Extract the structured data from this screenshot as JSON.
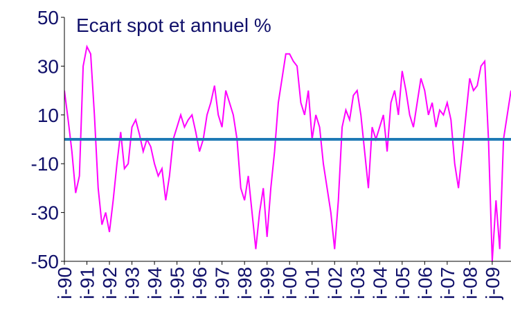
{
  "chart_data": {
    "type": "line",
    "annotation": "Ecart spot et annuel %",
    "categories": [
      "i-90",
      null,
      null,
      null,
      null,
      null,
      "i-91",
      null,
      null,
      null,
      null,
      null,
      "i-92",
      null,
      null,
      null,
      null,
      null,
      "i-93",
      null,
      null,
      null,
      null,
      null,
      "i-94",
      null,
      null,
      null,
      null,
      null,
      "i-95",
      null,
      null,
      null,
      null,
      null,
      "i-96",
      null,
      null,
      null,
      null,
      null,
      "i-97",
      null,
      null,
      null,
      null,
      null,
      "i-98",
      null,
      null,
      null,
      null,
      null,
      "i-99",
      null,
      null,
      null,
      null,
      null,
      "i-00",
      null,
      null,
      null,
      null,
      null,
      "i-01",
      null,
      null,
      null,
      null,
      null,
      "i-02",
      null,
      null,
      null,
      null,
      null,
      "i-03",
      null,
      null,
      null,
      null,
      null,
      "i-04",
      null,
      null,
      null,
      null,
      null,
      "i-05",
      null,
      null,
      null,
      null,
      null,
      "i-06",
      null,
      null,
      null,
      null,
      null,
      "i-07",
      null,
      null,
      null,
      null,
      null,
      "i-08",
      null,
      null,
      null,
      null,
      null,
      "j-09",
      null,
      null,
      null,
      null,
      null
    ],
    "series": [
      {
        "color": "#ff00ff",
        "values": [
          20,
          8,
          -5,
          -22,
          -15,
          30,
          38,
          35,
          10,
          -20,
          -35,
          -30,
          -38,
          -25,
          -10,
          3,
          -12,
          -10,
          5,
          8,
          2,
          -5,
          0,
          -3,
          -10,
          -15,
          -12,
          -25,
          -15,
          0,
          5,
          10,
          5,
          8,
          10,
          3,
          -5,
          0,
          10,
          15,
          22,
          10,
          5,
          20,
          15,
          10,
          0,
          -20,
          -25,
          -15,
          -30,
          -45,
          -30,
          -20,
          -40,
          -20,
          -5,
          15,
          25,
          35,
          35,
          32,
          30,
          15,
          10,
          20,
          0,
          10,
          5,
          -10,
          -20,
          -30,
          -45,
          -25,
          5,
          12,
          8,
          18,
          20,
          10,
          -5,
          -20,
          5,
          0,
          5,
          10,
          -5,
          15,
          20,
          10,
          28,
          20,
          10,
          5,
          15,
          25,
          20,
          10,
          15,
          5,
          12,
          10,
          15,
          8,
          -10,
          -20,
          -5,
          10,
          25,
          20,
          22,
          30,
          32,
          0,
          -50,
          -25,
          -45,
          0,
          10,
          20
        ]
      }
    ],
    "hline": {
      "value": 0,
      "color": "#1f7ab5"
    },
    "ylim": [
      -50,
      50
    ],
    "yticks": [
      -50,
      -30,
      -10,
      10,
      30,
      50
    ],
    "grid": false
  }
}
